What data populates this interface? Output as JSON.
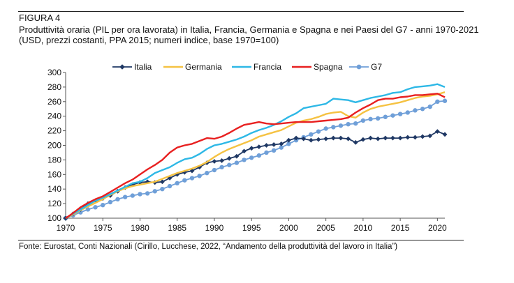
{
  "figure": {
    "label": "FIGURA 4",
    "title": "Produttività oraria (PIL per ora lavorata) in Italia, Francia, Germania e Spagna e nei Paesi del G7 - anni 1970-2021 (USD, prezzi costanti, PPA 2015; numeri indice, base 1970=100)",
    "source": "Fonte: Eurostat, Conti Nazionali (Cirillo, Lucchese, 2022, “Andamento della produttività del lavoro in Italia”)"
  },
  "chart_data": {
    "type": "line",
    "title": "",
    "xlabel": "",
    "ylabel": "",
    "xlim": [
      1970,
      2021
    ],
    "ylim": [
      100,
      300
    ],
    "x_ticks": [
      1970,
      1975,
      1980,
      1985,
      1990,
      1995,
      2000,
      2005,
      2010,
      2015,
      2020
    ],
    "y_ticks": [
      100,
      120,
      140,
      160,
      180,
      200,
      220,
      240,
      260,
      280,
      300
    ],
    "grid": false,
    "legend": "top",
    "x": [
      1970,
      1971,
      1972,
      1973,
      1974,
      1975,
      1976,
      1977,
      1978,
      1979,
      1980,
      1981,
      1982,
      1983,
      1984,
      1985,
      1986,
      1987,
      1988,
      1989,
      1990,
      1991,
      1992,
      1993,
      1994,
      1995,
      1996,
      1997,
      1998,
      1999,
      2000,
      2001,
      2002,
      2003,
      2004,
      2005,
      2006,
      2007,
      2008,
      2009,
      2010,
      2011,
      2012,
      2013,
      2014,
      2015,
      2016,
      2017,
      2018,
      2019,
      2020,
      2021
    ],
    "series": [
      {
        "name": "Italia",
        "color": "#1f3864",
        "marker": "diamond",
        "values": [
          100,
          106,
          112,
          120,
          124,
          127,
          131,
          137,
          142,
          146,
          149,
          150,
          149,
          150,
          155,
          160,
          163,
          165,
          170,
          176,
          178,
          179,
          182,
          185,
          192,
          196,
          198,
          200,
          201,
          202,
          207,
          210,
          209,
          207,
          208,
          209,
          210,
          210,
          209,
          204,
          208,
          210,
          209,
          210,
          210,
          210,
          211,
          211,
          212,
          213,
          219,
          215
        ]
      },
      {
        "name": "Germania",
        "color": "#f5c242",
        "marker": "none",
        "values": [
          100,
          105,
          111,
          116,
          121,
          126,
          132,
          137,
          141,
          144,
          146,
          148,
          150,
          154,
          158,
          162,
          165,
          168,
          172,
          177,
          184,
          190,
          195,
          199,
          203,
          207,
          212,
          215,
          218,
          221,
          226,
          231,
          234,
          236,
          239,
          243,
          245,
          246,
          240,
          238,
          245,
          250,
          253,
          255,
          257,
          259,
          262,
          265,
          267,
          268,
          270,
          273
        ]
      },
      {
        "name": "Francia",
        "color": "#2eb8e6",
        "marker": "none",
        "values": [
          100,
          106,
          112,
          118,
          124,
          128,
          133,
          138,
          143,
          148,
          150,
          155,
          162,
          166,
          170,
          176,
          181,
          183,
          188,
          195,
          200,
          202,
          205,
          208,
          212,
          217,
          221,
          224,
          228,
          233,
          239,
          244,
          251,
          253,
          255,
          257,
          264,
          263,
          262,
          259,
          262,
          265,
          267,
          269,
          272,
          273,
          277,
          280,
          281,
          282,
          284,
          280
        ]
      },
      {
        "name": "Spagna",
        "color": "#e82020",
        "marker": "none",
        "values": [
          100,
          107,
          115,
          121,
          126,
          130,
          136,
          142,
          148,
          153,
          160,
          167,
          173,
          180,
          190,
          197,
          200,
          202,
          206,
          210,
          209,
          212,
          217,
          223,
          228,
          230,
          232,
          230,
          229,
          230,
          231,
          232,
          232,
          232,
          233,
          234,
          235,
          236,
          238,
          245,
          251,
          256,
          262,
          264,
          264,
          266,
          267,
          269,
          269,
          270,
          271,
          266
        ]
      },
      {
        "name": "G7",
        "color": "#6f9fd8",
        "marker": "circle",
        "values": [
          100,
          104,
          108,
          112,
          115,
          118,
          122,
          126,
          129,
          131,
          133,
          134,
          137,
          140,
          144,
          148,
          152,
          155,
          158,
          162,
          166,
          170,
          173,
          176,
          180,
          183,
          186,
          190,
          193,
          197,
          202,
          207,
          211,
          215,
          219,
          223,
          225,
          227,
          229,
          230,
          234,
          236,
          237,
          239,
          241,
          243,
          245,
          248,
          250,
          253,
          260,
          261
        ]
      }
    ]
  }
}
